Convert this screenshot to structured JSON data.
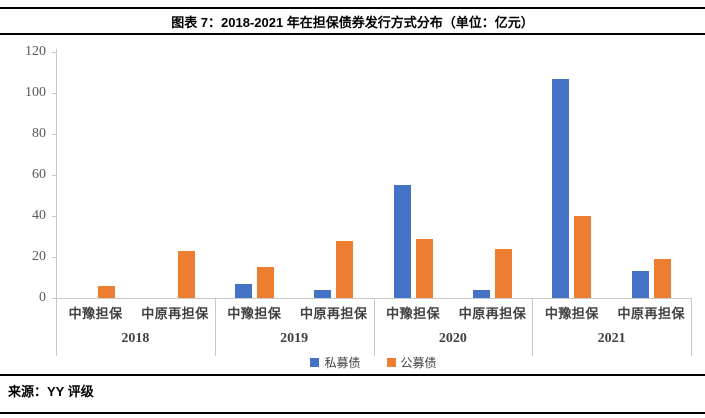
{
  "header": {
    "title": "图表 7：2018-2021 年在担保债券发行方式分布（单位：亿元）"
  },
  "chart_data": {
    "type": "bar",
    "title": "图表 7：2018-2021 年在担保债券发行方式分布（单位：亿元）",
    "unit": "亿元",
    "ylim": [
      0,
      120
    ],
    "y_ticks": [
      0,
      20,
      40,
      60,
      80,
      100,
      120
    ],
    "grid": false,
    "legend_position": "bottom-center",
    "years": [
      "2018",
      "2019",
      "2020",
      "2021"
    ],
    "subcategories": [
      "中豫担保",
      "中原再担保"
    ],
    "categories": [
      "2018 中豫担保",
      "2018 中原再担保",
      "2019 中豫担保",
      "2019 中原再担保",
      "2020 中豫担保",
      "2020 中原再担保",
      "2021 中豫担保",
      "2021 中原再担保"
    ],
    "series": [
      {
        "name": "私募债",
        "color": "#4472C4",
        "values": [
          0,
          0,
          7,
          4,
          55,
          4,
          107,
          13
        ]
      },
      {
        "name": "公募债",
        "color": "#ED7D31",
        "values": [
          6,
          23,
          15,
          28,
          29,
          24,
          40,
          19
        ]
      }
    ]
  },
  "footer": {
    "source": "来源：YY 评级"
  }
}
